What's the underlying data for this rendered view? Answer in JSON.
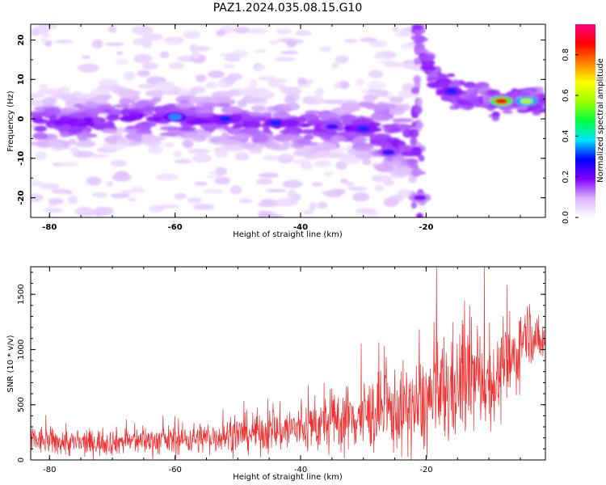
{
  "title": "PAZ1.2024.035.08.15.G10",
  "chart_data": [
    {
      "type": "heatmap",
      "xlabel": "Height of straight line (km)",
      "ylabel": "Frequency (Hz)",
      "xlim": [
        -83,
        -1
      ],
      "ylim": [
        -25,
        24
      ],
      "xticks": [
        -80,
        -60,
        -40,
        -20
      ],
      "yticks": [
        -20,
        -10,
        0,
        10,
        20
      ],
      "xtick_labels": [
        "-80",
        "-60",
        "-40",
        "-20"
      ],
      "ytick_labels": [
        "-20",
        "-10",
        "0",
        "10",
        "20"
      ],
      "colorbar": {
        "label": "Normalized spectral amplitude",
        "range": [
          0,
          0.95
        ],
        "ticks": [
          0.0,
          0.2,
          0.4,
          0.6,
          0.8
        ],
        "tick_labels": [
          "0.0",
          "0.2",
          "0.4",
          "0.6",
          "0.8"
        ],
        "colors": [
          "#ffffff",
          "#d9b3ff",
          "#8000ff",
          "#0000ff",
          "#00e5ff",
          "#00ff40",
          "#a0ff00",
          "#ffff00",
          "#ff8000",
          "#ff0000",
          "#ff0080"
        ]
      },
      "ridge": [
        {
          "x": -82,
          "y": -1
        },
        {
          "x": -75,
          "y": -1
        },
        {
          "x": -68,
          "y": 0.5
        },
        {
          "x": -60,
          "y": 0
        },
        {
          "x": -52,
          "y": -0.5
        },
        {
          "x": -45,
          "y": -1.5
        },
        {
          "x": -38,
          "y": -2
        },
        {
          "x": -32,
          "y": -2.5
        },
        {
          "x": -27,
          "y": -4
        },
        {
          "x": -23,
          "y": -6
        },
        {
          "x": -21.5,
          "y": -8
        }
      ],
      "hot_spots": [
        {
          "x": -60,
          "y": 0.5,
          "amp": 0.35
        },
        {
          "x": -52,
          "y": 0,
          "amp": 0.3
        },
        {
          "x": -44,
          "y": -1,
          "amp": 0.3
        },
        {
          "x": -35,
          "y": -2,
          "amp": 0.25
        },
        {
          "x": -30,
          "y": -2.5,
          "amp": 0.3
        },
        {
          "x": -26,
          "y": -8.5,
          "amp": 0.25
        },
        {
          "x": -21,
          "y": -20,
          "amp": 0.2
        },
        {
          "x": -16,
          "y": 7,
          "amp": 0.3
        },
        {
          "x": -8,
          "y": 4.5,
          "amp": 0.85
        },
        {
          "x": -4,
          "y": 4.5,
          "amp": 0.6
        }
      ],
      "ridge2": [
        {
          "x": -21.5,
          "y": 24
        },
        {
          "x": -20,
          "y": 14
        },
        {
          "x": -18,
          "y": 9
        },
        {
          "x": -15,
          "y": 6.5
        },
        {
          "x": -10,
          "y": 5
        },
        {
          "x": -5,
          "y": 4.5
        },
        {
          "x": -1,
          "y": 5
        }
      ]
    },
    {
      "type": "line",
      "xlabel": "Height of straight line (km)",
      "ylabel": "SNR (10 * v/v)",
      "xlim": [
        -83,
        -1
      ],
      "ylim": [
        0,
        1750
      ],
      "xticks": [
        -80,
        -60,
        -40,
        -20
      ],
      "yticks": [
        0,
        500,
        1000,
        1500
      ],
      "xtick_labels": [
        "-80",
        "-60",
        "-40",
        "-20"
      ],
      "ytick_labels": [
        "0",
        "500",
        "1000",
        "1500"
      ],
      "line_color": "#ee3030",
      "envelope": [
        {
          "x": -83,
          "mean": 180,
          "spread": 120
        },
        {
          "x": -75,
          "mean": 150,
          "spread": 110
        },
        {
          "x": -68,
          "mean": 170,
          "spread": 110
        },
        {
          "x": -60,
          "mean": 180,
          "spread": 120
        },
        {
          "x": -52,
          "mean": 220,
          "spread": 140
        },
        {
          "x": -45,
          "mean": 260,
          "spread": 180
        },
        {
          "x": -38,
          "mean": 300,
          "spread": 220
        },
        {
          "x": -32,
          "mean": 380,
          "spread": 280
        },
        {
          "x": -27,
          "mean": 430,
          "spread": 320
        },
        {
          "x": -22,
          "mean": 460,
          "spread": 380
        },
        {
          "x": -17,
          "mean": 600,
          "spread": 500
        },
        {
          "x": -13,
          "mean": 750,
          "spread": 450
        },
        {
          "x": -9,
          "mean": 700,
          "spread": 350
        },
        {
          "x": -6,
          "mean": 900,
          "spread": 350
        },
        {
          "x": -4,
          "mean": 1200,
          "spread": 250
        },
        {
          "x": -2,
          "mean": 1050,
          "spread": 200
        },
        {
          "x": -1,
          "mean": 1100,
          "spread": 150
        }
      ]
    }
  ]
}
